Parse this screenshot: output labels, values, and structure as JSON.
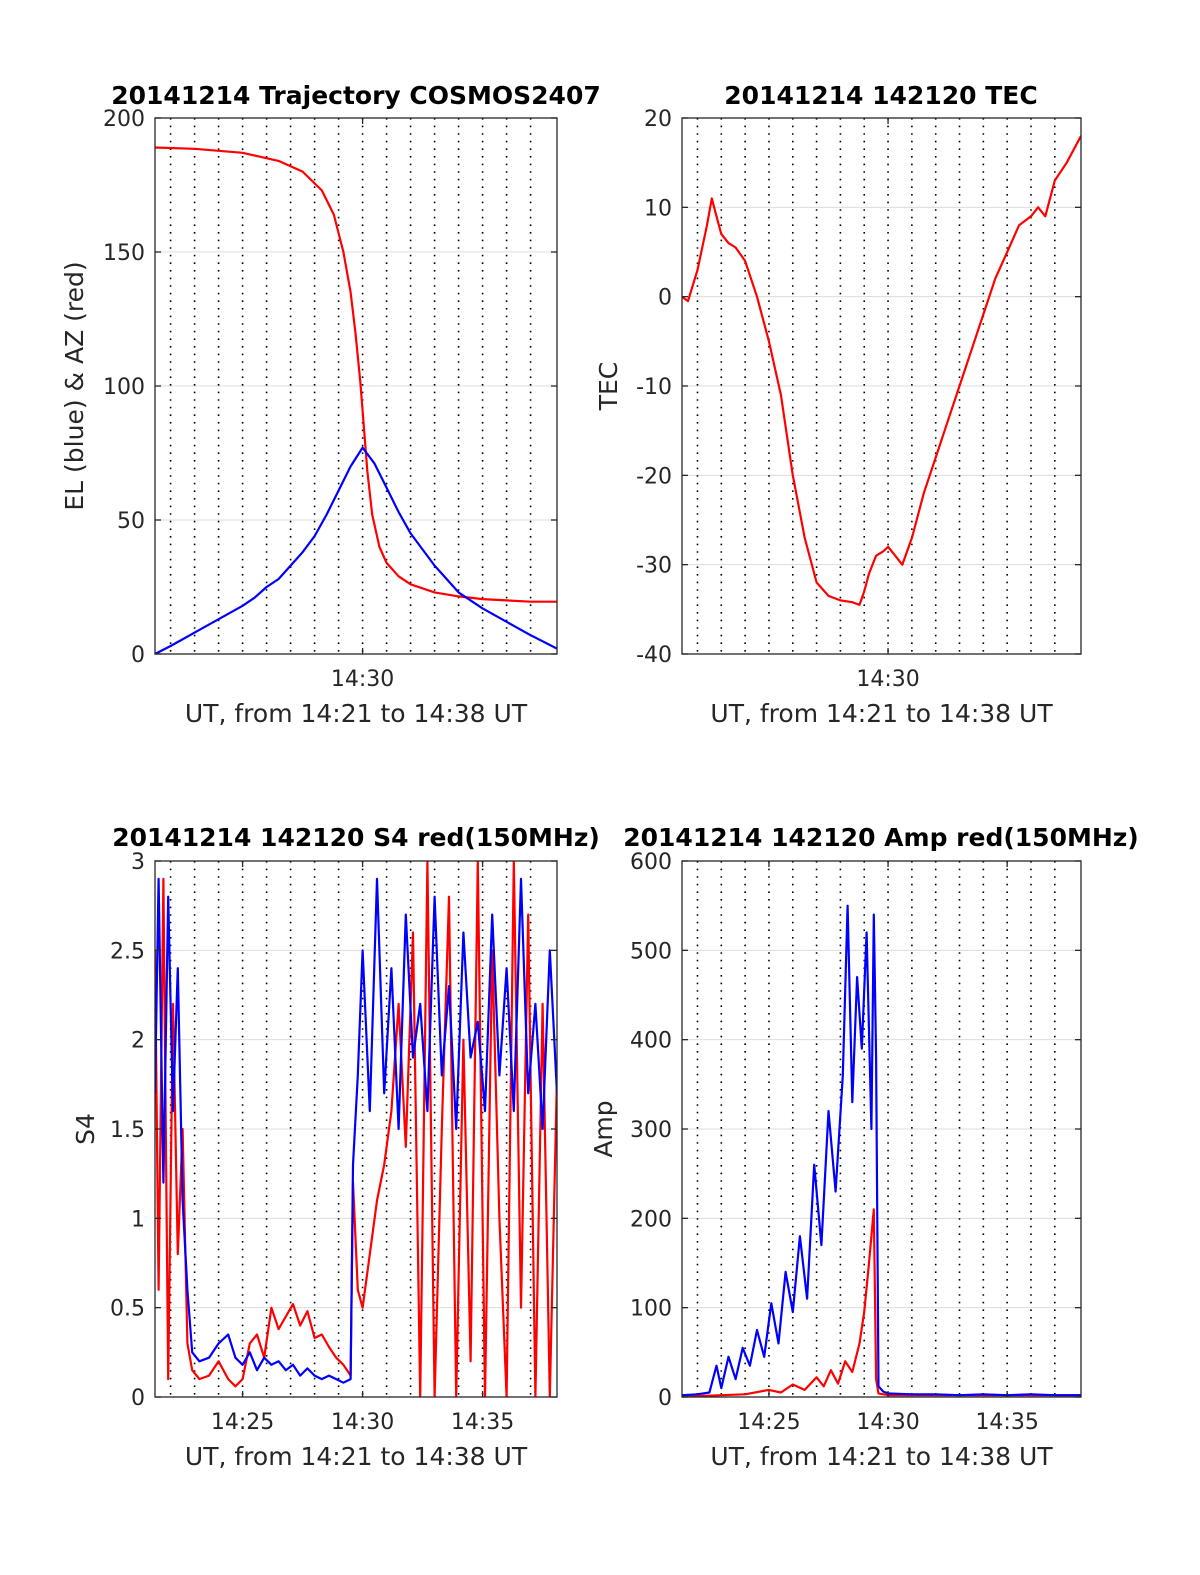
{
  "chart_data": [
    {
      "type": "line",
      "id": "p1",
      "title": "20141214 Trajectory COSMOS2407",
      "xlabel": "UT, from 14:21 to 14:38 UT",
      "ylabel": "EL (blue) & AZ (red)",
      "xlim": [
        21.35,
        38.1
      ],
      "ylim": [
        0,
        200
      ],
      "yticks": [
        0,
        50,
        100,
        150,
        200
      ],
      "ytick_labels": [
        "0",
        "50",
        "100",
        "150",
        "200"
      ],
      "xticks": [
        30
      ],
      "xtick_labels": [
        "14:30"
      ],
      "vgrid_minutes": [
        22,
        23,
        24,
        25,
        26,
        27,
        28,
        29,
        30,
        31,
        32,
        33,
        34,
        35,
        36,
        37
      ],
      "series": [
        {
          "color": "#ff0000",
          "x": [
            21.35,
            23,
            25,
            26.5,
            27.5,
            28.3,
            28.8,
            29.2,
            29.5,
            29.7,
            29.9,
            30.05,
            30.2,
            30.4,
            30.7,
            31,
            31.5,
            32,
            33,
            34,
            35,
            36,
            37,
            38.1
          ],
          "y": [
            189,
            188.5,
            187,
            184,
            180,
            173,
            164,
            150,
            135,
            120,
            102,
            85,
            68,
            52,
            40,
            34,
            29,
            26,
            23,
            21.5,
            20.5,
            20,
            19.5,
            19.5
          ]
        },
        {
          "color": "#0000ff",
          "x": [
            21.35,
            22,
            23,
            24,
            25,
            25.5,
            26,
            26.5,
            27,
            27.5,
            28,
            28.5,
            29,
            29.5,
            30,
            30.5,
            31,
            31.5,
            32,
            32.5,
            33,
            34,
            35,
            36,
            37,
            38.1
          ],
          "y": [
            0,
            3,
            8,
            13,
            18,
            21,
            25,
            28,
            33,
            38,
            44,
            52,
            61,
            70,
            77,
            71,
            62,
            53,
            45,
            39,
            33,
            23,
            17,
            12,
            7,
            2
          ]
        }
      ]
    },
    {
      "type": "line",
      "id": "p2",
      "title": "20141214 142120 TEC",
      "xlabel": "UT, from 14:21 to 14:38 UT",
      "ylabel": "TEC",
      "xlim": [
        21.35,
        38.1
      ],
      "ylim": [
        -40,
        20
      ],
      "yticks": [
        -40,
        -30,
        -20,
        -10,
        0,
        10,
        20
      ],
      "ytick_labels": [
        "-40",
        "-30",
        "-20",
        "-10",
        "0",
        "10",
        "20"
      ],
      "xticks": [
        30
      ],
      "xtick_labels": [
        "14:30"
      ],
      "vgrid_minutes": [
        22,
        23,
        24,
        25,
        26,
        27,
        28,
        29,
        30,
        31,
        32,
        33,
        34,
        35,
        36,
        37
      ],
      "series": [
        {
          "color": "#ff0000",
          "x": [
            21.35,
            21.6,
            22,
            22.4,
            22.6,
            22.8,
            23,
            23.3,
            23.6,
            24,
            24.5,
            25,
            25.5,
            26,
            26.5,
            27,
            27.5,
            28,
            28.5,
            28.8,
            29,
            29.2,
            29.5,
            29.8,
            30,
            30.3,
            30.6,
            31,
            31.5,
            32,
            32.5,
            33,
            33.5,
            34,
            34.5,
            35,
            35.5,
            36,
            36.3,
            36.6,
            37,
            37.5,
            38.1
          ],
          "y": [
            0,
            -0.5,
            3,
            8,
            11,
            9,
            7,
            6,
            5.5,
            4,
            0,
            -5,
            -11,
            -20,
            -27,
            -32,
            -33.5,
            -34,
            -34.2,
            -34.5,
            -33,
            -31,
            -29,
            -28.5,
            -28,
            -29,
            -30,
            -27,
            -22,
            -18,
            -14,
            -10,
            -6,
            -2,
            2,
            5,
            8,
            9,
            10,
            9,
            13,
            15,
            18
          ]
        }
      ]
    },
    {
      "type": "line",
      "id": "p3",
      "title": "20141214 142120 S4 red(150MHz)",
      "xlabel": "UT, from 14:21 to 14:38 UT",
      "ylabel": "S4",
      "xlim": [
        21.35,
        38.1
      ],
      "ylim": [
        0,
        3
      ],
      "yticks": [
        0,
        0.5,
        1,
        1.5,
        2,
        2.5,
        3
      ],
      "ytick_labels": [
        "0",
        "0.5",
        "1",
        "1.5",
        "2",
        "2.5",
        "3"
      ],
      "xticks": [
        25,
        30,
        35
      ],
      "xtick_labels": [
        "14:25",
        "14:30",
        "14:35"
      ],
      "vgrid_minutes": [
        22,
        23,
        24,
        25,
        26,
        27,
        28,
        29,
        30,
        31,
        32,
        33,
        34,
        35,
        36,
        37
      ],
      "series": [
        {
          "color": "#ff0000",
          "x": [
            21.35,
            21.5,
            21.7,
            21.9,
            22.1,
            22.3,
            22.5,
            22.7,
            22.9,
            23.2,
            23.6,
            24,
            24.4,
            24.7,
            25,
            25.3,
            25.6,
            25.9,
            26.2,
            26.5,
            26.8,
            27.1,
            27.4,
            27.7,
            28,
            28.3,
            28.6,
            28.9,
            29.2,
            29.5,
            29.6,
            29.8,
            30,
            30.3,
            30.6,
            30.9,
            31.2,
            31.5,
            31.8,
            32.1,
            32.4,
            32.7,
            33,
            33.3,
            33.6,
            33.9,
            34.2,
            34.5,
            34.8,
            35.1,
            35.4,
            35.7,
            36,
            36.3,
            36.6,
            36.9,
            37.2,
            37.5,
            37.8,
            38.1
          ],
          "y": [
            2.5,
            0.6,
            2.9,
            0.1,
            2.2,
            0.8,
            1.5,
            0.3,
            0.15,
            0.1,
            0.12,
            0.2,
            0.1,
            0.06,
            0.1,
            0.3,
            0.35,
            0.22,
            0.5,
            0.38,
            0.45,
            0.52,
            0.4,
            0.48,
            0.33,
            0.35,
            0.28,
            0.22,
            0.18,
            0.12,
            1.2,
            0.6,
            0.5,
            0.8,
            1.1,
            1.3,
            1.6,
            2.2,
            1.4,
            2.6,
            0.0,
            3.0,
            0.0,
            1.5,
            2.8,
            0.0,
            2.0,
            0.2,
            3.0,
            0.0,
            2.5,
            1.0,
            0.0,
            3.0,
            0.5,
            2.7,
            0.0,
            2.2,
            0.0,
            1.8
          ]
        },
        {
          "color": "#0000ff",
          "x": [
            21.35,
            21.5,
            21.7,
            21.9,
            22.1,
            22.3,
            22.5,
            22.7,
            22.9,
            23.2,
            23.6,
            24,
            24.4,
            24.7,
            25,
            25.3,
            25.6,
            25.9,
            26.2,
            26.5,
            26.8,
            27.1,
            27.4,
            27.7,
            28,
            28.3,
            28.6,
            28.9,
            29.2,
            29.5,
            29.6,
            29.8,
            30,
            30.3,
            30.6,
            30.9,
            31.2,
            31.5,
            31.8,
            32.1,
            32.4,
            32.7,
            33,
            33.3,
            33.6,
            33.9,
            34.2,
            34.5,
            34.8,
            35.1,
            35.4,
            35.7,
            36,
            36.3,
            36.6,
            36.9,
            37.2,
            37.5,
            37.8,
            38.1
          ],
          "y": [
            1.7,
            2.9,
            1.2,
            2.8,
            1.6,
            2.4,
            1.1,
            0.6,
            0.25,
            0.2,
            0.22,
            0.3,
            0.35,
            0.22,
            0.18,
            0.25,
            0.15,
            0.22,
            0.18,
            0.2,
            0.15,
            0.18,
            0.12,
            0.16,
            0.12,
            0.1,
            0.12,
            0.1,
            0.08,
            0.1,
            1.3,
            1.8,
            2.5,
            1.6,
            2.9,
            1.7,
            2.4,
            1.5,
            2.7,
            1.9,
            2.2,
            1.6,
            2.8,
            1.8,
            2.3,
            1.5,
            2.6,
            1.9,
            2.1,
            1.6,
            2.7,
            1.8,
            2.4,
            1.6,
            2.9,
            1.7,
            2.2,
            1.5,
            2.5,
            1.7
          ]
        }
      ]
    },
    {
      "type": "line",
      "id": "p4",
      "title": "20141214 142120 Amp red(150MHz)",
      "xlabel": "UT, from 14:21 to 14:38 UT",
      "ylabel": "Amp",
      "xlim": [
        21.35,
        38.1
      ],
      "ylim": [
        0,
        600
      ],
      "yticks": [
        0,
        100,
        200,
        300,
        400,
        500,
        600
      ],
      "ytick_labels": [
        "0",
        "100",
        "200",
        "300",
        "400",
        "500",
        "600"
      ],
      "xticks": [
        25,
        30,
        35
      ],
      "xtick_labels": [
        "14:25",
        "14:30",
        "14:35"
      ],
      "vgrid_minutes": [
        22,
        23,
        24,
        25,
        26,
        27,
        28,
        29,
        30,
        31,
        32,
        33,
        34,
        35,
        36,
        37
      ],
      "series": [
        {
          "color": "#ff0000",
          "x": [
            21.35,
            22,
            23,
            24,
            25,
            25.5,
            26,
            26.5,
            27,
            27.3,
            27.6,
            27.9,
            28.2,
            28.5,
            28.8,
            29,
            29.2,
            29.4,
            29.5,
            29.6,
            29.8,
            30,
            31,
            32,
            33,
            34,
            35,
            36,
            37,
            38.1
          ],
          "y": [
            1,
            1,
            2,
            3,
            8,
            5,
            14,
            8,
            22,
            12,
            30,
            15,
            40,
            28,
            60,
            95,
            150,
            210,
            20,
            4,
            3,
            2,
            2,
            2,
            2,
            2,
            2,
            2,
            2,
            2
          ]
        },
        {
          "color": "#0000ff",
          "x": [
            21.35,
            22,
            22.5,
            22.8,
            23,
            23.3,
            23.6,
            23.9,
            24.2,
            24.5,
            24.8,
            25.1,
            25.4,
            25.7,
            26,
            26.3,
            26.6,
            26.9,
            27.2,
            27.5,
            27.8,
            28.1,
            28.3,
            28.5,
            28.7,
            28.9,
            29.1,
            29.3,
            29.4,
            29.5,
            29.6,
            29.8,
            30,
            31,
            32,
            33,
            34,
            35,
            36,
            37,
            38.1
          ],
          "y": [
            2,
            3,
            5,
            35,
            10,
            45,
            20,
            55,
            35,
            75,
            45,
            105,
            60,
            140,
            95,
            180,
            110,
            260,
            170,
            320,
            230,
            360,
            550,
            330,
            470,
            390,
            520,
            300,
            540,
            380,
            12,
            6,
            4,
            3,
            3,
            2,
            3,
            2,
            3,
            2,
            2
          ]
        }
      ]
    }
  ]
}
